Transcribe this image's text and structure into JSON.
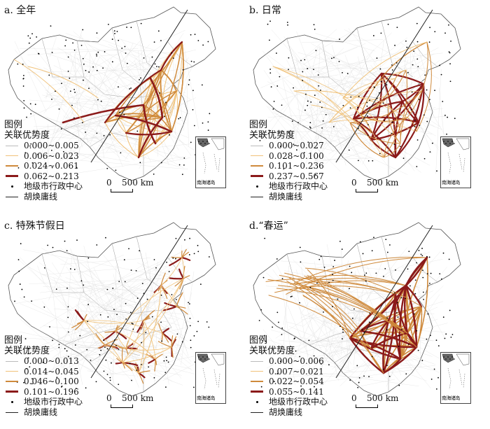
{
  "panels": [
    {
      "title": "a. 全年",
      "style": "all",
      "legend_title": "关联优势度",
      "classes": [
        "0.000~0.005",
        "0.006~0.023",
        "0.024~0.061",
        "0.062~0.213"
      ]
    },
    {
      "title": "b. 日常",
      "style": "daily",
      "legend_title": "关联优势度",
      "classes": [
        "0.000~0.027",
        "0.028~0.100",
        "0.101~0.236",
        "0.237~0.567"
      ]
    },
    {
      "title": "c. 特殊节假日",
      "style": "holiday",
      "legend_title": "关联优势度",
      "classes": [
        "0.000~0.013",
        "0.014~0.045",
        "0.046~0.100",
        "0.101~0.196"
      ]
    },
    {
      "title": "d.“春运”",
      "style": "spring",
      "legend_title": "关联优势度",
      "classes": [
        "0.000~0.006",
        "0.007~0.021",
        "0.022~0.054",
        "0.055~0.141"
      ]
    }
  ],
  "legend": {
    "heading": "图例",
    "city_label": "地级市行政中心",
    "line_label": "胡焕庸线"
  },
  "scale_bar": {
    "zero": "0",
    "distance": "500 km"
  },
  "inset_label": "南海诸岛",
  "class_colors": [
    "#d8d8d8",
    "#f0c27a",
    "#cf8a3c",
    "#8b1a1a"
  ]
}
